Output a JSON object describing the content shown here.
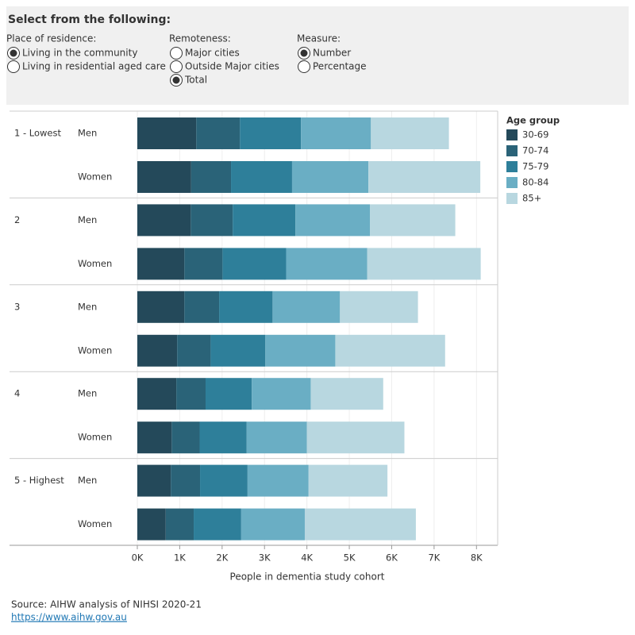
{
  "filters": {
    "title": "Select from the following:",
    "groups": [
      {
        "label": "Place of residence:",
        "options": [
          "Living in the community",
          "Living in residential aged care"
        ],
        "selected": 0
      },
      {
        "label": "Remoteness:",
        "options": [
          "Major cities",
          "Outside Major cities",
          "Total"
        ],
        "selected": 2
      },
      {
        "label": "Measure:",
        "options": [
          "Number",
          "Percentage"
        ],
        "selected": 0
      }
    ]
  },
  "chart_data": {
    "type": "stacked-barh",
    "groups": [
      "1 - Lowest",
      "2",
      "3",
      "4",
      "5 - Highest"
    ],
    "categories": [
      "Men",
      "Women",
      "Men",
      "Women",
      "Men",
      "Women",
      "Men",
      "Women",
      "Men",
      "Women"
    ],
    "legend_title": "Age group",
    "series": [
      {
        "name": "30-69",
        "color": "#24495a",
        "values": [
          1390,
          1270,
          1260,
          1110,
          1110,
          940,
          920,
          810,
          790,
          670
        ]
      },
      {
        "name": "70-74",
        "color": "#2a6378",
        "values": [
          1030,
          940,
          990,
          900,
          820,
          790,
          690,
          660,
          690,
          660
        ]
      },
      {
        "name": "75-79",
        "color": "#2e7f9a",
        "values": [
          1440,
          1440,
          1480,
          1500,
          1260,
          1290,
          1090,
          1110,
          1120,
          1120
        ]
      },
      {
        "name": "80-84",
        "color": "#6aaec4",
        "values": [
          1650,
          1800,
          1760,
          1910,
          1590,
          1650,
          1390,
          1420,
          1440,
          1500
        ]
      },
      {
        "name": "85+",
        "color": "#b8d7e0",
        "values": [
          1840,
          2640,
          2010,
          2680,
          1840,
          2590,
          1710,
          2300,
          1860,
          2620
        ]
      }
    ],
    "xlabel": "People in dementia study cohort",
    "xlim": [
      0,
      8500
    ],
    "xticks": [
      {
        "value": 0,
        "label": "0K"
      },
      {
        "value": 1000,
        "label": "1K"
      },
      {
        "value": 2000,
        "label": "2K"
      },
      {
        "value": 3000,
        "label": "3K"
      },
      {
        "value": 4000,
        "label": "4K"
      },
      {
        "value": 5000,
        "label": "5K"
      },
      {
        "value": 6000,
        "label": "6K"
      },
      {
        "value": 7000,
        "label": "7K"
      },
      {
        "value": 8000,
        "label": "8K"
      }
    ],
    "grid": true
  },
  "source": {
    "text": "Source: AIHW analysis of NIHSI 2020-21",
    "link": "https://www.aihw.gov.au"
  }
}
